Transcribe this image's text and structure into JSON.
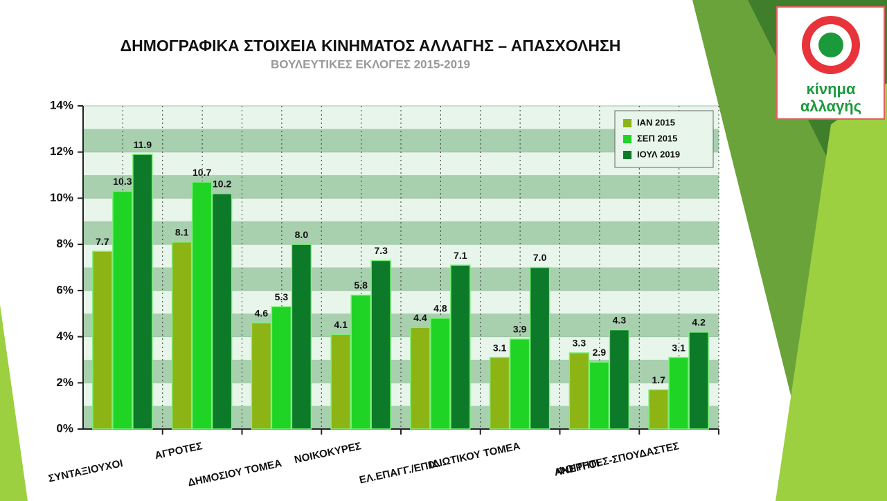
{
  "chart_data": {
    "type": "bar",
    "title": "ΔΗΜΟΓΡΑΦΙΚΑ ΣΤΟΙΧΕΙΑ ΚΙΝΗΜΑΤΟΣ ΑΛΛΑΓΗΣ – ΑΠΑΣΧΟΛΗΣΗ",
    "subtitle": "ΒΟΥΛΕΥΤΙΚΕΣ ΕΚΛΟΓΕΣ 2015-2019",
    "categories": [
      "ΣΥΝΤΑΞΙΟΥΧΟΙ",
      "ΑΓΡΟΤΕΣ",
      "ΔΗΜΟΣΙΟΥ ΤΟΜΕΑ",
      "ΝΟΙΚΟΚΥΡΕΣ",
      "ΕΛ.ΕΠΑΓΓ./ΕΠΙΧ.",
      "ΙΔΙΩΤΙΚΟΥ ΤΟΜΕΑ",
      "ΑΝΕΡΓΟΙ",
      "ΦΟΙΤΗΤΕΣ-ΣΠΟΥΔΑΣΤΕΣ"
    ],
    "series": [
      {
        "name": "ΙΑΝ 2015",
        "color": "#8cb414",
        "values": [
          7.7,
          8.1,
          4.6,
          4.1,
          4.4,
          3.1,
          3.3,
          1.7
        ],
        "value_labels": [
          "7.7",
          "8.1",
          "4.6",
          "4.1",
          "4.4",
          "3.1",
          "3.3",
          "1.7"
        ]
      },
      {
        "name": "ΣΕΠ 2015",
        "color": "#1fd424",
        "values": [
          10.3,
          10.7,
          5.3,
          5.8,
          4.8,
          3.9,
          2.9,
          3.1
        ],
        "value_labels": [
          "10.3",
          "10.7",
          "5.3",
          "5.8",
          "4.8",
          "3.9",
          "2.9",
          "3.1"
        ]
      },
      {
        "name": "ΙΟΥΛ 2019",
        "color": "#0d7a2a",
        "values": [
          11.9,
          10.2,
          8.0,
          7.3,
          7.1,
          7.0,
          4.3,
          4.2
        ],
        "value_labels": [
          "11.9",
          "10.2",
          "8.0",
          "7.3",
          "7.1",
          "7.0",
          "4.3",
          "4.2"
        ]
      }
    ],
    "ylim": [
      0,
      14
    ],
    "yticks": [
      {
        "value": 0,
        "label": "0%"
      },
      {
        "value": 2,
        "label": "2%"
      },
      {
        "value": 4,
        "label": "4%"
      },
      {
        "value": 6,
        "label": "6%"
      },
      {
        "value": 8,
        "label": "8%"
      },
      {
        "value": 10,
        "label": "10%"
      },
      {
        "value": 12,
        "label": "12%"
      },
      {
        "value": 14,
        "label": "14%"
      }
    ],
    "grid": true,
    "legend": "upper right"
  },
  "logo": {
    "line1": "κίνημα",
    "line2": "αλλαγής"
  }
}
